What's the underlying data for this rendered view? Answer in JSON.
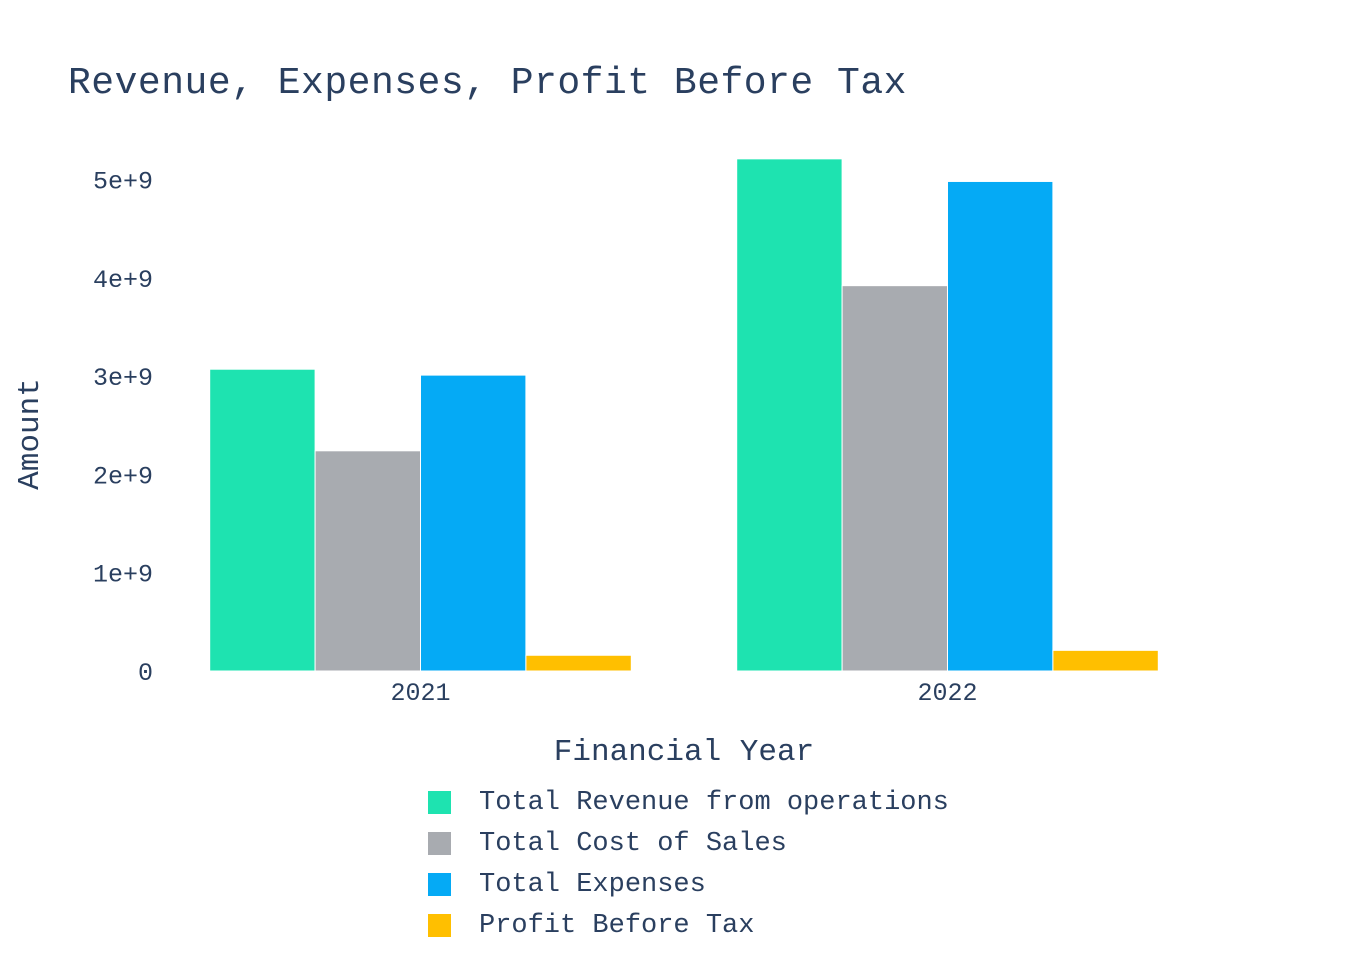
{
  "chart_data": {
    "type": "bar",
    "title": "Revenue, Expenses, Profit Before Tax",
    "xlabel": "Financial Year",
    "ylabel": "Amount",
    "categories": [
      "2021",
      "2022"
    ],
    "ylim": [
      0,
      5300000000
    ],
    "yticks": [
      0,
      1000000000,
      2000000000,
      3000000000,
      4000000000,
      5000000000
    ],
    "ytick_labels": [
      "0",
      "1e+9",
      "2e+9",
      "3e+9",
      "4e+9",
      "5e+9"
    ],
    "grid": false,
    "legend_position": "bottom",
    "series": [
      {
        "name": "Total Revenue from operations",
        "color": "#1ee3b0",
        "values": [
          3070000000,
          5210000000
        ]
      },
      {
        "name": "Total Cost of Sales",
        "color": "#a8abb0",
        "values": [
          2240000000,
          3920000000
        ]
      },
      {
        "name": "Total Expenses",
        "color": "#05aaf5",
        "values": [
          3010000000,
          4980000000
        ]
      },
      {
        "name": "Profit Before Tax",
        "color": "#ffbf00",
        "values": [
          160000000,
          210000000
        ]
      }
    ]
  }
}
